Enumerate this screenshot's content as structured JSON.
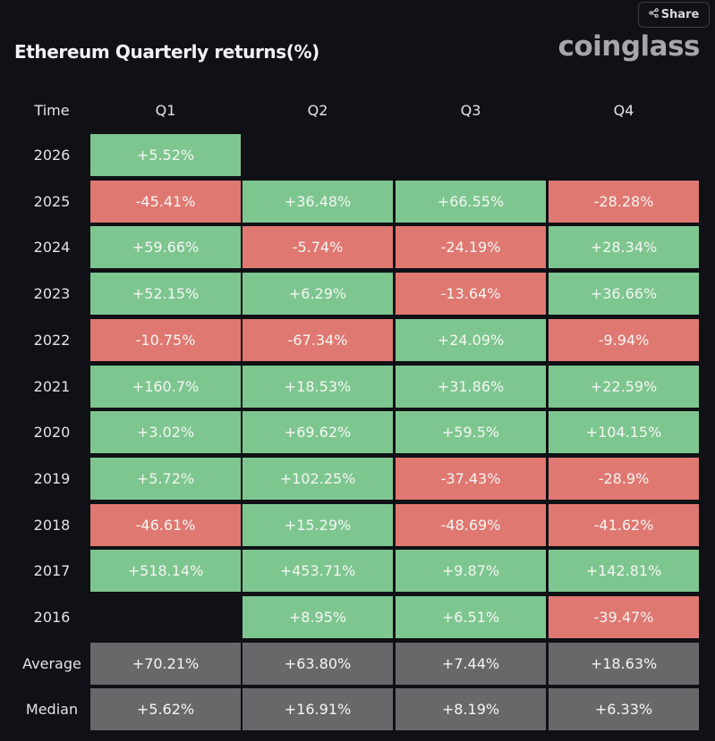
{
  "header": {
    "title": "Ethereum Quarterly returns(%)",
    "logo": "coinglass",
    "share_label": "Share"
  },
  "colors": {
    "positive": "#7ec68f",
    "negative": "#e07872",
    "summary": "#68686b",
    "background": "#0f1116"
  },
  "chart_data": {
    "type": "table",
    "title": "Ethereum Quarterly returns(%)",
    "columns": [
      "Time",
      "Q1",
      "Q2",
      "Q3",
      "Q4"
    ],
    "rows": [
      {
        "label": "2026",
        "values": [
          "+5.52%",
          null,
          null,
          null
        ]
      },
      {
        "label": "2025",
        "values": [
          "-45.41%",
          "+36.48%",
          "+66.55%",
          "-28.28%"
        ]
      },
      {
        "label": "2024",
        "values": [
          "+59.66%",
          "-5.74%",
          "-24.19%",
          "+28.34%"
        ]
      },
      {
        "label": "2023",
        "values": [
          "+52.15%",
          "+6.29%",
          "-13.64%",
          "+36.66%"
        ]
      },
      {
        "label": "2022",
        "values": [
          "-10.75%",
          "-67.34%",
          "+24.09%",
          "-9.94%"
        ]
      },
      {
        "label": "2021",
        "values": [
          "+160.7%",
          "+18.53%",
          "+31.86%",
          "+22.59%"
        ]
      },
      {
        "label": "2020",
        "values": [
          "+3.02%",
          "+69.62%",
          "+59.5%",
          "+104.15%"
        ]
      },
      {
        "label": "2019",
        "values": [
          "+5.72%",
          "+102.25%",
          "-37.43%",
          "-28.9%"
        ]
      },
      {
        "label": "2018",
        "values": [
          "-46.61%",
          "+15.29%",
          "-48.69%",
          "-41.62%"
        ]
      },
      {
        "label": "2017",
        "values": [
          "+518.14%",
          "+453.71%",
          "+9.87%",
          "+142.81%"
        ]
      },
      {
        "label": "2016",
        "values": [
          null,
          "+8.95%",
          "+6.51%",
          "-39.47%"
        ]
      }
    ],
    "summary": [
      {
        "label": "Average",
        "values": [
          "+70.21%",
          "+63.80%",
          "+7.44%",
          "+18.63%"
        ]
      },
      {
        "label": "Median",
        "values": [
          "+5.62%",
          "+16.91%",
          "+8.19%",
          "+6.33%"
        ]
      }
    ]
  }
}
